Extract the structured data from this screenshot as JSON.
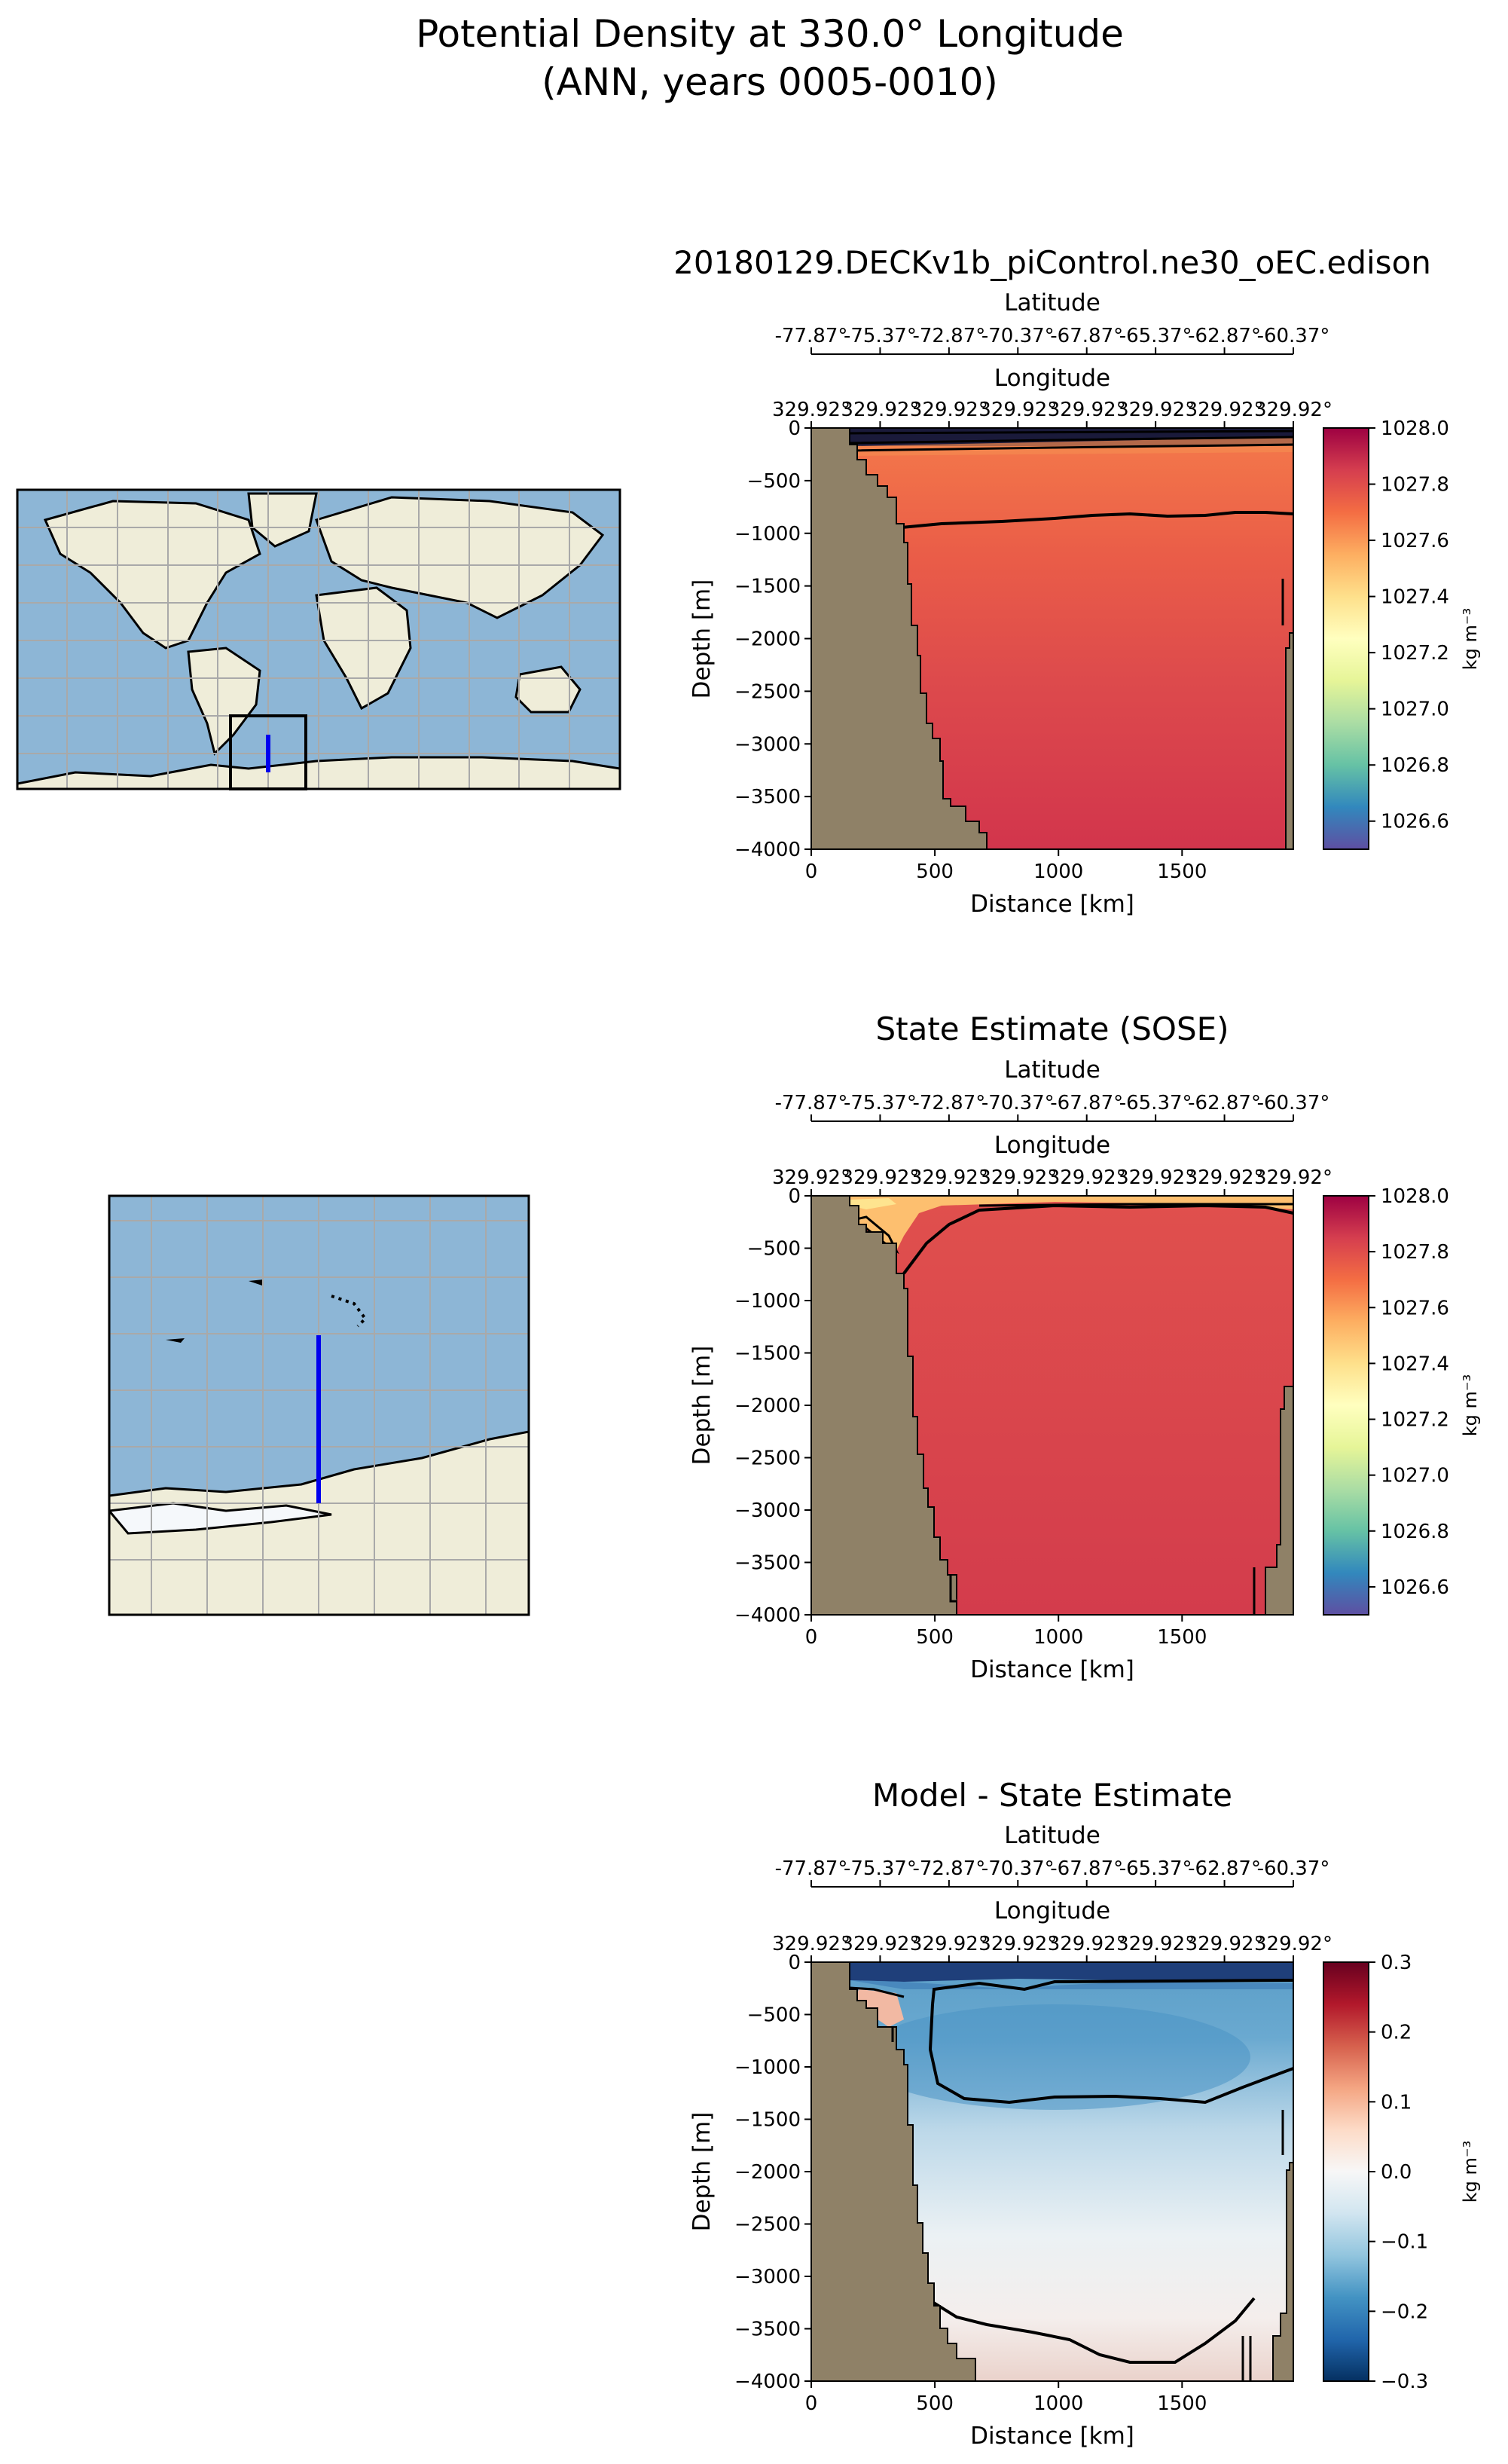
{
  "figure": {
    "title_line1": "Potential Density at 330.0° Longitude",
    "title_line2": "(ANN, years 0005-0010)"
  },
  "secondary_axes": {
    "latitude_label": "Latitude",
    "latitude_ticks": [
      "-77.87°",
      "-75.37°",
      "-72.87°",
      "-70.37°",
      "-67.87°",
      "-65.37°",
      "-62.87°",
      "-60.37°"
    ],
    "longitude_label": "Longitude",
    "longitude_ticks": [
      "329.92°",
      "329.92°",
      "329.92°",
      "329.92°",
      "329.92°",
      "329.92°",
      "329.92°",
      "329.92°"
    ]
  },
  "maps": [
    {
      "name": "global-map",
      "description_hidden": false
    },
    {
      "name": "regional-map",
      "description_hidden": false
    }
  ],
  "colors": {
    "land": "#8f8167",
    "ocean": "#8db6d6",
    "continent": "#efedd9",
    "grid": "#a9a9a9",
    "transect": "#0000ee"
  },
  "chart_data": [
    {
      "type": "heatmap",
      "title": "20180129.DECKv1b_piControl.ne30_oEC.edison",
      "xlabel": "Distance [km]",
      "ylabel": "Depth [m]",
      "xlim": [
        0,
        1950
      ],
      "ylim": [
        -4000,
        0
      ],
      "xticks": [
        "0",
        "500",
        "1000",
        "1500"
      ],
      "yticks": [
        "0",
        "−500",
        "−1000",
        "−1500",
        "−2000",
        "−2500",
        "−3000",
        "−3500",
        "−4000"
      ],
      "colormap": "Spectral_r",
      "clim": [
        1026.5,
        1028.0
      ],
      "colorbar_ticks": [
        "1028.0",
        "1027.8",
        "1027.6",
        "1027.4",
        "1027.2",
        "1027.0",
        "1026.8",
        "1026.6"
      ],
      "colorbar_label": "kg m⁻³"
    },
    {
      "type": "heatmap",
      "title": "State Estimate (SOSE)",
      "xlabel": "Distance [km]",
      "ylabel": "Depth [m]",
      "xlim": [
        0,
        1950
      ],
      "ylim": [
        -4000,
        0
      ],
      "xticks": [
        "0",
        "500",
        "1000",
        "1500"
      ],
      "yticks": [
        "0",
        "−500",
        "−1000",
        "−1500",
        "−2000",
        "−2500",
        "−3000",
        "−3500",
        "−4000"
      ],
      "colormap": "Spectral_r",
      "clim": [
        1026.5,
        1028.0
      ],
      "colorbar_ticks": [
        "1028.0",
        "1027.8",
        "1027.6",
        "1027.4",
        "1027.2",
        "1027.0",
        "1026.8",
        "1026.6"
      ],
      "colorbar_label": "kg m⁻³"
    },
    {
      "type": "heatmap",
      "title": "Model - State Estimate",
      "xlabel": "Distance [km]",
      "ylabel": "Depth [m]",
      "xlim": [
        0,
        1950
      ],
      "ylim": [
        -4000,
        0
      ],
      "xticks": [
        "0",
        "500",
        "1000",
        "1500"
      ],
      "yticks": [
        "0",
        "−500",
        "−1000",
        "−1500",
        "−2000",
        "−2500",
        "−3000",
        "−3500",
        "−4000"
      ],
      "colormap": "RdBu_r",
      "clim": [
        -0.3,
        0.3
      ],
      "colorbar_ticks": [
        "0.3",
        "0.2",
        "0.1",
        "0.0",
        "−0.1",
        "−0.2",
        "−0.3"
      ],
      "colorbar_label": "kg m⁻³"
    }
  ]
}
